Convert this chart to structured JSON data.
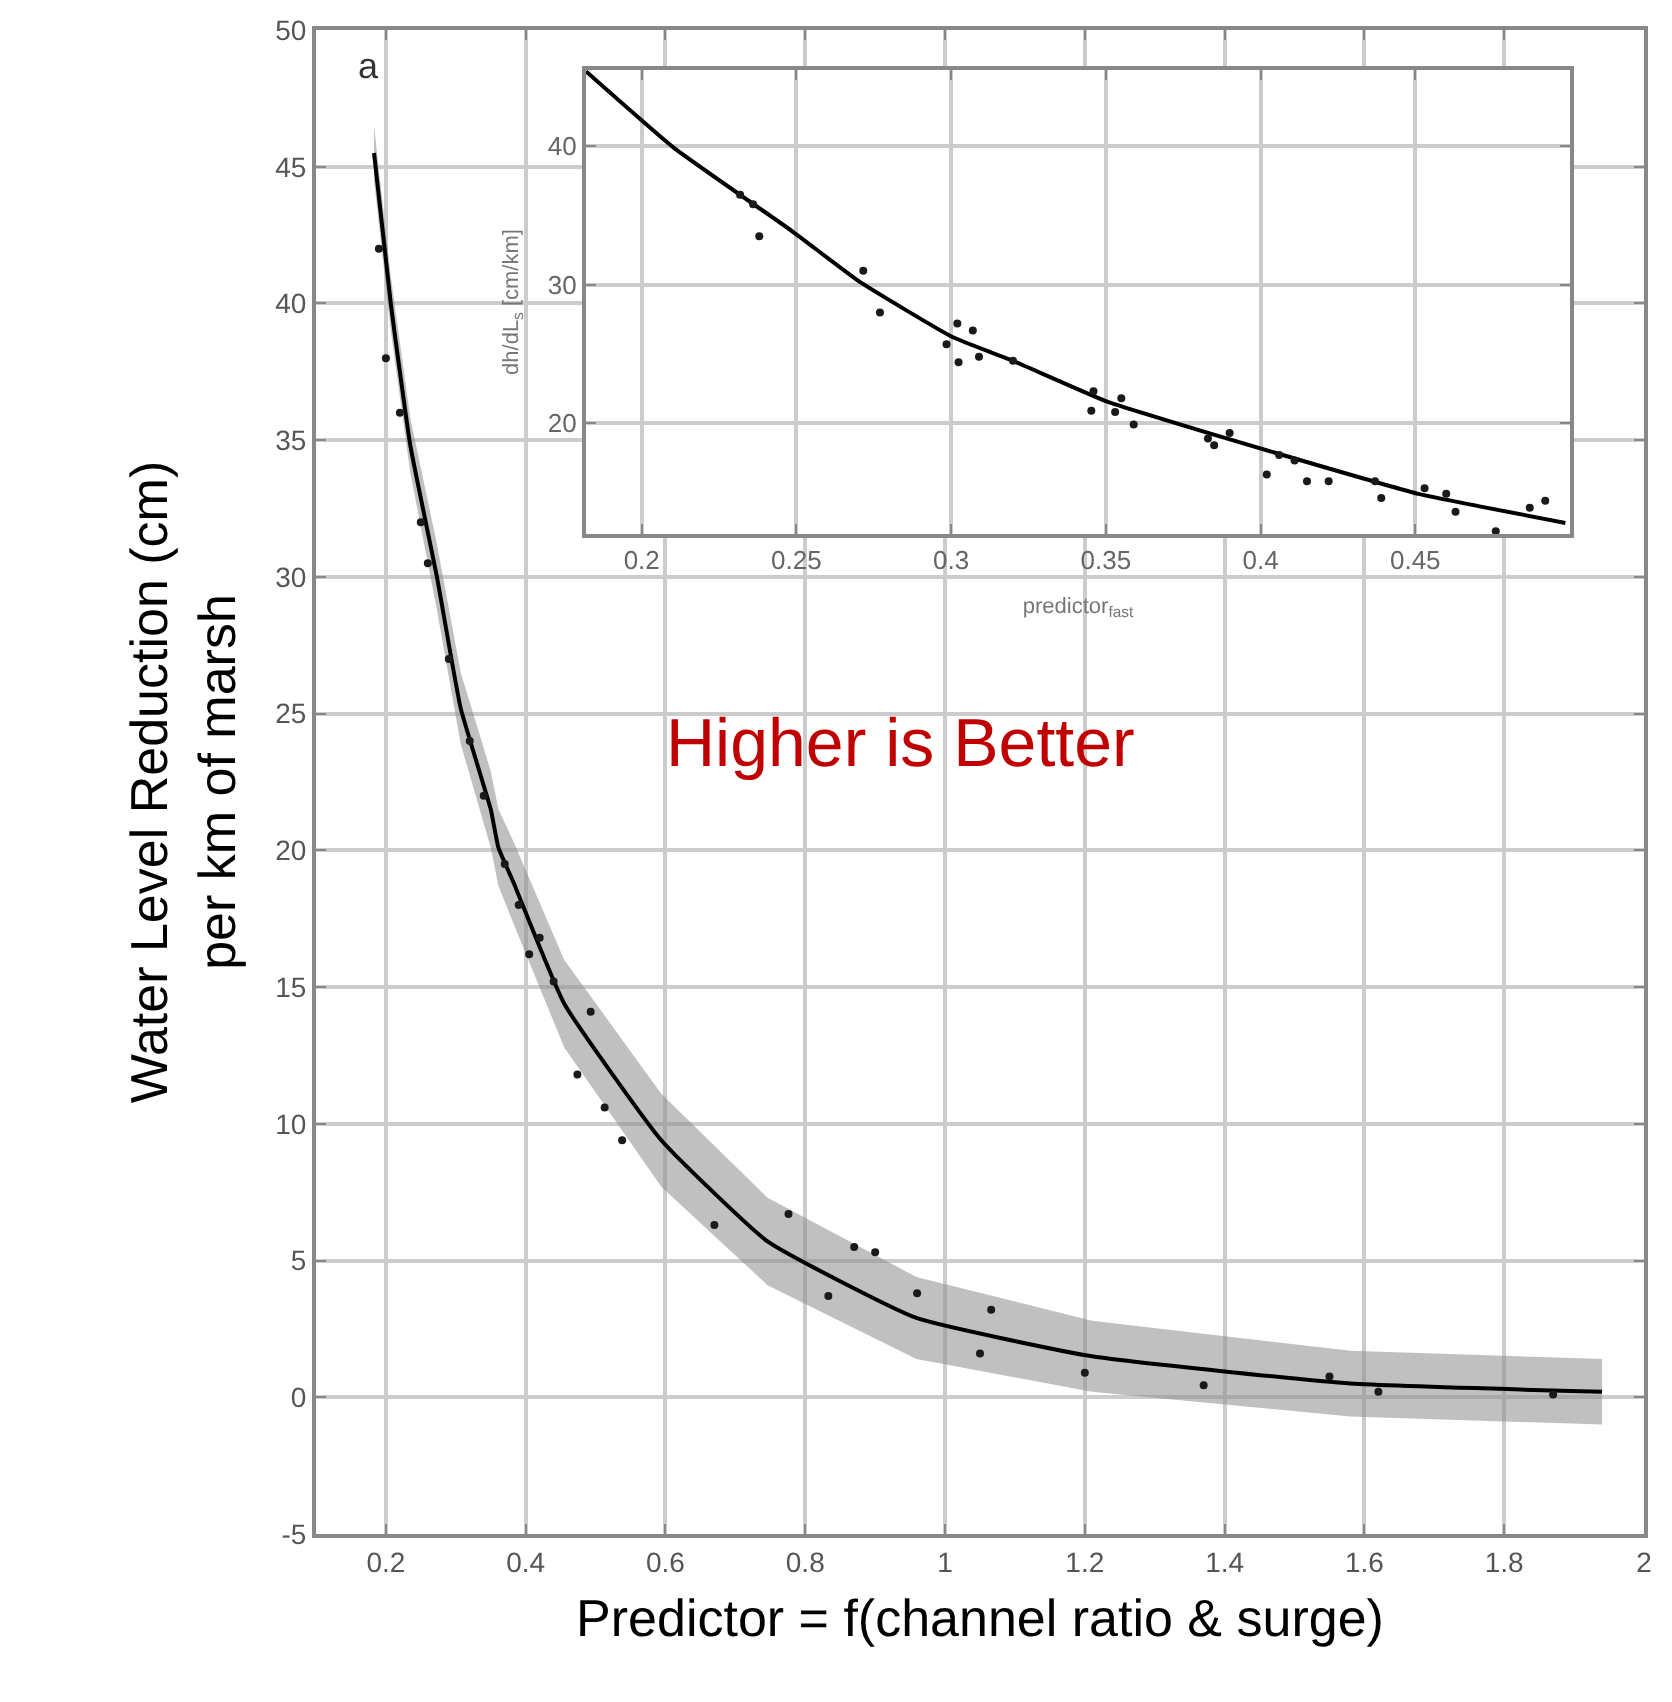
{
  "chart_data": [
    {
      "type": "line",
      "xlabel": "Predictor = f(channel ratio & surge)",
      "ylabel": "Water Level Reduction (cm)\nper km of marsh",
      "annotations": [
        "a",
        "Higher is Better"
      ],
      "xlim": [
        0.1,
        2.0
      ],
      "xticks": [
        0.2,
        0.4,
        0.6,
        0.8,
        1,
        1.2,
        1.4,
        1.6,
        1.8,
        2
      ],
      "ylim": [
        -5,
        50
      ],
      "yticks": [
        -5,
        0,
        5,
        10,
        15,
        20,
        25,
        30,
        35,
        40,
        45,
        50
      ],
      "grid": true,
      "series": [
        {
          "color": "#000000",
          "marker": "none",
          "line_style": "solid",
          "x": [
            0.183,
            0.207,
            0.235,
            0.273,
            0.307,
            0.35,
            0.361,
            0.383,
            0.455,
            0.594,
            0.746,
            0.959,
            1.21,
            1.58,
            1.94
          ],
          "values": [
            45.5,
            40,
            34.8,
            30,
            25.2,
            21.5,
            20.1,
            18.8,
            14.4,
            9.4,
            5.7,
            2.9,
            1.5,
            0.5,
            0.2
          ],
          "lower": [
            44.5,
            39,
            33.8,
            28.8,
            23.9,
            20.1,
            18.7,
            17.3,
            12.8,
            7.7,
            4.1,
            1.4,
            0.2,
            -0.7,
            -1
          ],
          "upper": [
            46.5,
            41,
            35.8,
            31.2,
            26.5,
            22.9,
            21.5,
            20.3,
            16,
            11.1,
            7.3,
            4.4,
            2.8,
            1.7,
            1.4
          ]
        },
        {
          "type": "scatter",
          "color": "#1a1a1a",
          "marker": "circle",
          "x": [
            0.19,
            0.2,
            0.22,
            0.25,
            0.26,
            0.29,
            0.32,
            0.34,
            0.37,
            0.39,
            0.405,
            0.42,
            0.44,
            0.474,
            0.493,
            0.513,
            0.538,
            0.67,
            0.776,
            0.833,
            0.87,
            0.9,
            0.96,
            1.05,
            1.066,
            1.2,
            1.37,
            1.55,
            1.62,
            1.87
          ],
          "values": [
            42,
            38,
            36,
            32,
            30.5,
            27,
            24,
            22,
            19.5,
            18,
            16.2,
            16.8,
            15.2,
            11.8,
            14.1,
            10.6,
            9.4,
            6.3,
            6.7,
            3.7,
            5.5,
            5.3,
            3.8,
            1.6,
            3.2,
            0.9,
            0.44,
            0.76,
            0.2,
            0.1
          ]
        }
      ]
    },
    {
      "type": "line",
      "xlabel": "predictor$_{fast}$",
      "ylabel": "dh/dL$_{s}$ [cm/km]",
      "xlim": [
        0.182,
        0.5
      ],
      "xticks": [
        0.2,
        0.25,
        0.3,
        0.35,
        0.4,
        0.45
      ],
      "ylim": [
        12,
        45.5
      ],
      "yticks": [
        20,
        30,
        40
      ],
      "grid": true,
      "series": [
        {
          "color": "#000000",
          "marker": "none",
          "line_style": "solid",
          "x": [
            0.182,
            0.2103,
            0.249,
            0.2705,
            0.3006,
            0.32,
            0.35,
            0.389,
            0.421,
            0.451,
            0.4985
          ],
          "values": [
            45.4,
            39.9,
            33.8,
            30.2,
            26.2,
            24.5,
            21.6,
            18.9,
            16.8,
            14.9,
            12.8
          ]
        },
        {
          "type": "scatter",
          "color": "#1a1a1a",
          "marker": "circle",
          "x": [
            0.2318,
            0.236,
            0.238,
            0.2716,
            0.277,
            0.2985,
            0.302,
            0.307,
            0.3024,
            0.309,
            0.32,
            0.346,
            0.3453,
            0.355,
            0.353,
            0.359,
            0.383,
            0.39,
            0.385,
            0.402,
            0.406,
            0.411,
            0.415,
            0.422,
            0.437,
            0.439,
            0.453,
            0.46,
            0.463,
            0.476,
            0.487,
            0.492
          ],
          "values": [
            36.5,
            35.8,
            33.5,
            31,
            28,
            25.7,
            27.2,
            26.7,
            24.4,
            24.8,
            24.5,
            22.3,
            20.9,
            21.8,
            20.8,
            19.9,
            18.9,
            19.3,
            18.4,
            16.3,
            17.7,
            17.3,
            15.8,
            15.8,
            15.8,
            14.6,
            15.3,
            14.9,
            13.6,
            12.2,
            13.9,
            14.4
          ]
        }
      ]
    }
  ]
}
